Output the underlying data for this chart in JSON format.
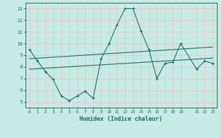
{
  "xlabel": "Humidex (Indice chaleur)",
  "bg_color": "#c8eae4",
  "grid_color": "#e8c8c8",
  "line_color": "#1a6b6b",
  "xlim": [
    -0.5,
    23.5
  ],
  "ylim": [
    4.5,
    13.5
  ],
  "xticks": [
    0,
    1,
    2,
    3,
    4,
    5,
    6,
    7,
    8,
    9,
    10,
    11,
    12,
    13,
    14,
    15,
    16,
    17,
    18,
    19,
    21,
    22,
    23
  ],
  "yticks": [
    5,
    6,
    7,
    8,
    9,
    10,
    11,
    12,
    13
  ],
  "main_x": [
    0,
    1,
    2,
    3,
    4,
    5,
    6,
    7,
    8,
    9,
    10,
    11,
    12,
    13,
    14,
    15,
    16,
    17,
    18,
    19,
    21,
    22,
    23
  ],
  "main_y": [
    9.5,
    8.5,
    7.6,
    6.9,
    5.5,
    5.1,
    5.5,
    5.9,
    5.3,
    8.7,
    10.0,
    11.6,
    13.0,
    13.0,
    11.1,
    9.5,
    7.0,
    8.3,
    8.4,
    10.0,
    7.8,
    8.5,
    8.3
  ],
  "line2_x": [
    0,
    23
  ],
  "line2_y": [
    7.8,
    8.75
  ],
  "line3_x": [
    0,
    23
  ],
  "line3_y": [
    8.7,
    9.7
  ]
}
